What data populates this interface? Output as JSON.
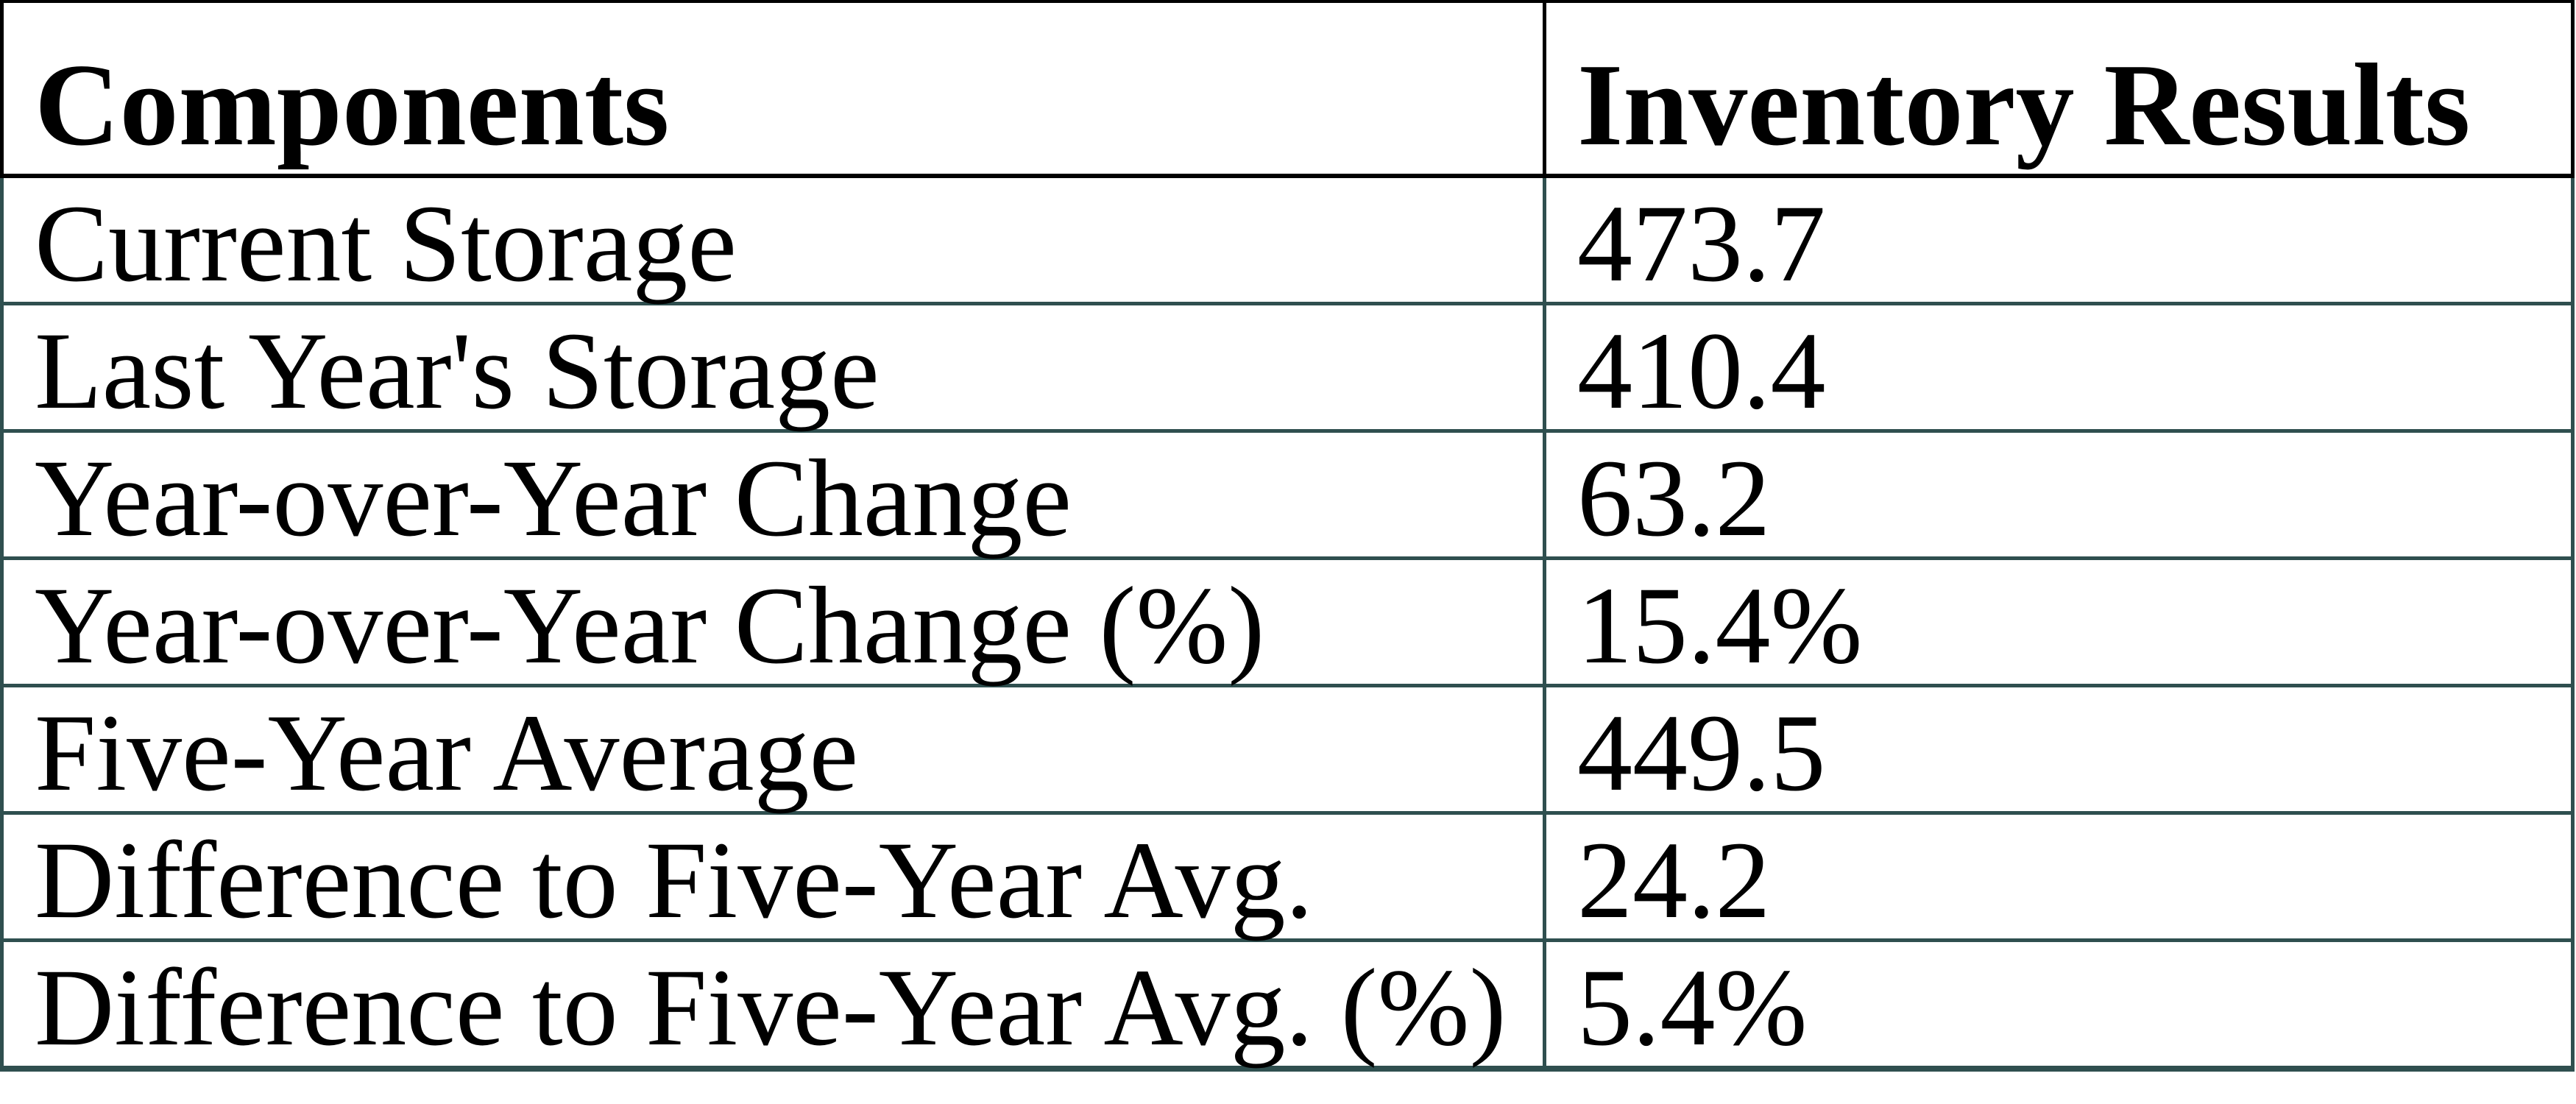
{
  "table": {
    "columns": [
      {
        "label": "Components"
      },
      {
        "label": "Inventory Results"
      }
    ],
    "rows": [
      {
        "label": "Current Storage",
        "value": "473.7"
      },
      {
        "label": "Last Year's Storage",
        "value": "410.4"
      },
      {
        "label": "Year-over-Year Change",
        "value": "63.2"
      },
      {
        "label": "Year-over-Year Change (%)",
        "value": "15.4%"
      },
      {
        "label": "Five-Year Average",
        "value": "449.5"
      },
      {
        "label": "Difference to Five-Year Avg.",
        "value": "24.2"
      },
      {
        "label": "Difference to Five-Year Avg. (%)",
        "value": "5.4%"
      }
    ],
    "colors": {
      "header_border": "#000000",
      "body_border": "#2F4F4F",
      "text": "#000000",
      "background": "#ffffff"
    }
  },
  "chart_data": {
    "type": "table",
    "columns": [
      "Components",
      "Inventory Results"
    ],
    "rows": [
      [
        "Current Storage",
        "473.7"
      ],
      [
        "Last Year's Storage",
        "410.4"
      ],
      [
        "Year-over-Year Change",
        "63.2"
      ],
      [
        "Year-over-Year Change (%)",
        "15.4%"
      ],
      [
        "Five-Year Average",
        "449.5"
      ],
      [
        "Difference to Five-Year Avg.",
        "24.2"
      ],
      [
        "Difference to Five-Year Avg. (%)",
        "5.4%"
      ]
    ],
    "values_numeric": {
      "current_storage": 473.7,
      "last_year_storage": 410.4,
      "yoy_change": 63.2,
      "yoy_change_pct": 15.4,
      "five_year_average": 449.5,
      "diff_to_five_year_avg": 24.2,
      "diff_to_five_year_avg_pct": 5.4
    }
  }
}
